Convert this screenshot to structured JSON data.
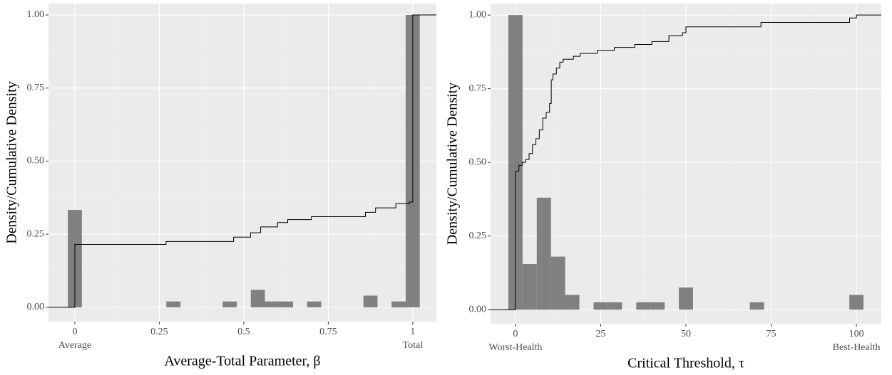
{
  "chart_data": [
    {
      "type": "histogram",
      "x_label": "Average-Total Parameter, β",
      "y_label": "Density/Cumulative Density",
      "bins": [
        -0.0208,
        0.0208,
        0.0625,
        0.1042,
        0.1458,
        0.1875,
        0.2292,
        0.2708,
        0.3125,
        0.3542,
        0.3958,
        0.4375,
        0.4792,
        0.5208,
        0.5625,
        0.6042,
        0.6458,
        0.6875,
        0.7292,
        0.7708,
        0.8125,
        0.8542,
        0.8958,
        0.9375,
        0.9792,
        1.0208
      ],
      "values": [
        0.333,
        0,
        0,
        0,
        0,
        0,
        0,
        0.02,
        0,
        0,
        0,
        0.02,
        0,
        0.06,
        0.02,
        0.02,
        0,
        0.02,
        0,
        0,
        0,
        0.04,
        0,
        0.02,
        1.0
      ],
      "color": "#808080",
      "ecdf": {
        "x": [
          -0.078,
          0,
          0.27,
          0.47,
          0.52,
          0.55,
          0.6,
          0.63,
          0.7,
          0.86,
          0.89,
          0.95,
          0.99,
          1.0,
          1.07
        ],
        "y": [
          0,
          0.215,
          0.225,
          0.24,
          0.255,
          0.275,
          0.29,
          0.3,
          0.31,
          0.325,
          0.34,
          0.355,
          0.36,
          1.0,
          1.0
        ],
        "color": "#000000"
      },
      "xlim": [
        -0.078,
        1.07
      ],
      "ylim": [
        -0.049,
        1.039
      ],
      "xticks": [
        0,
        0.25,
        0.5,
        0.75,
        1
      ],
      "yticks": [
        {
          "value": 0,
          "label": "0.00"
        },
        {
          "value": 0.25,
          "label": "0.25"
        },
        {
          "value": 0.5,
          "label": "0.50"
        },
        {
          "value": 0.75,
          "label": "0.75"
        },
        {
          "value": 1,
          "label": "1.00"
        }
      ],
      "annotations": [
        {
          "x": 0,
          "text": "Average"
        },
        {
          "x": 1,
          "text": "Total"
        }
      ],
      "grid": true,
      "minor_grid": true
    },
    {
      "type": "histogram",
      "x_label": "Critical Threshold, τ",
      "y_label": "Density/Cumulative Density",
      "bins": [
        -2.08,
        2.08,
        6.25,
        10.42,
        14.58,
        18.75,
        22.92,
        27.08,
        31.25,
        35.42,
        39.58,
        43.75,
        47.92,
        52.08,
        56.25,
        60.42,
        64.58,
        68.75,
        72.92,
        77.08,
        81.25,
        85.42,
        89.58,
        93.75,
        97.92,
        102.08
      ],
      "values": [
        1.0,
        0.155,
        0.38,
        0.18,
        0.05,
        0,
        0.025,
        0.025,
        0,
        0.025,
        0.025,
        0,
        0.075,
        0,
        0,
        0,
        0,
        0.025,
        0,
        0,
        0,
        0,
        0,
        0,
        0.05
      ],
      "color": "#808080",
      "ecdf": {
        "x": [
          -7.3,
          0,
          1,
          2,
          3,
          4,
          5,
          6,
          7,
          8,
          9,
          10,
          10.5,
          11,
          12,
          13,
          14,
          17,
          19,
          24,
          29,
          35,
          40,
          45,
          49,
          50,
          72,
          98,
          100,
          107.3
        ],
        "y": [
          0,
          0.47,
          0.49,
          0.5,
          0.51,
          0.53,
          0.56,
          0.58,
          0.61,
          0.65,
          0.67,
          0.7,
          0.78,
          0.8,
          0.82,
          0.84,
          0.85,
          0.86,
          0.87,
          0.88,
          0.89,
          0.9,
          0.91,
          0.93,
          0.94,
          0.96,
          0.975,
          0.99,
          1.0,
          1.0
        ],
        "color": "#000000"
      },
      "xlim": [
        -7.3,
        107.3
      ],
      "ylim": [
        -0.048,
        1.039
      ],
      "xticks": [
        0,
        25,
        50,
        75,
        100
      ],
      "yticks": [
        {
          "value": 0,
          "label": "0.00"
        },
        {
          "value": 0.25,
          "label": "0.25"
        },
        {
          "value": 0.5,
          "label": "0.50"
        },
        {
          "value": 0.75,
          "label": "0.75"
        },
        {
          "value": 1,
          "label": "1.00"
        }
      ],
      "annotations": [
        {
          "x": 0,
          "text": "Worst-Health"
        },
        {
          "x": 100,
          "text": "Best-Health"
        }
      ],
      "grid": true,
      "minor_grid": true
    }
  ]
}
